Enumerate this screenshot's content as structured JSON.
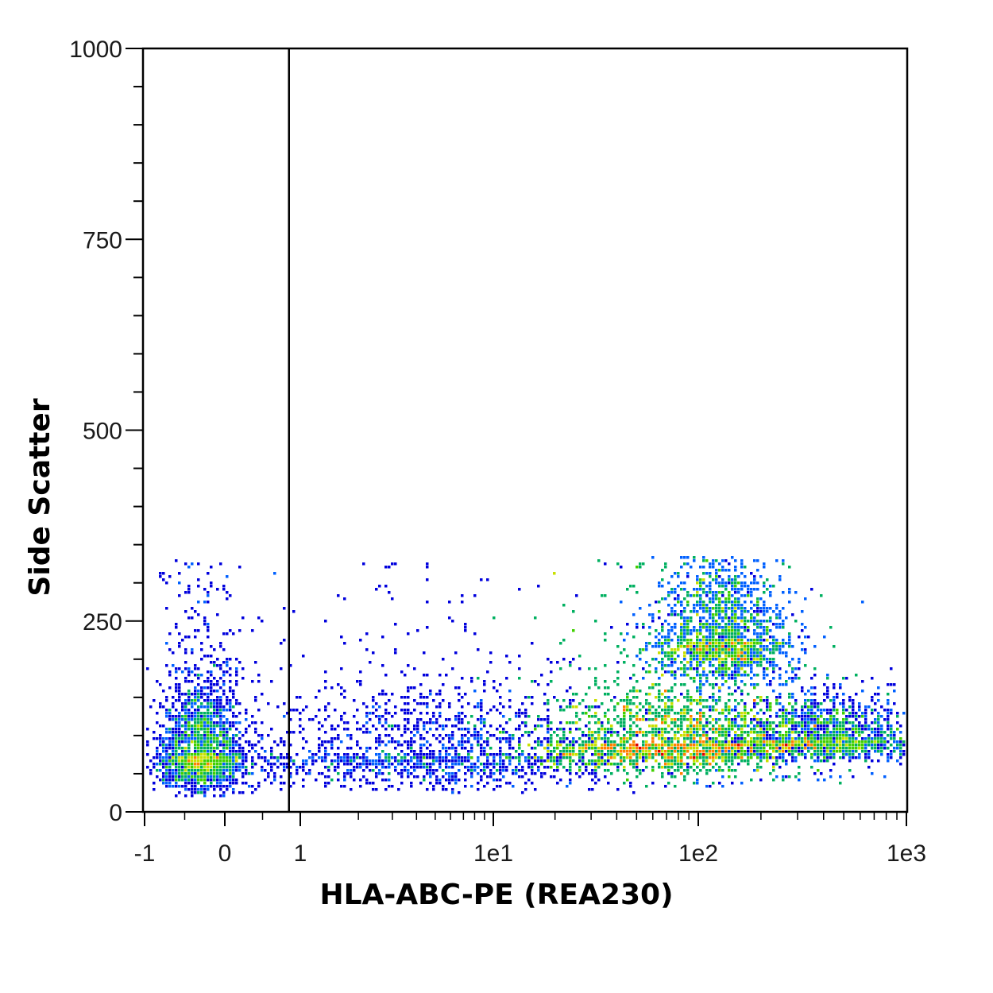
{
  "chart_data": {
    "type": "scatter",
    "subtype": "flow-cytometry-density-dot-plot",
    "xlabel": "HLA-ABC-PE (REA230)",
    "ylabel": "Side Scatter",
    "x_scale": "biexponential (linear near zero, logarithmic above 1)",
    "y_scale": "linear",
    "xlim": [
      -1,
      1000
    ],
    "ylim": [
      0,
      1000
    ],
    "x_ticks": [
      {
        "value": -1,
        "label": "-1"
      },
      {
        "value": 0,
        "label": "0"
      },
      {
        "value": 1,
        "label": "1"
      },
      {
        "value": 10,
        "label": "1e1"
      },
      {
        "value": 100,
        "label": "1e2"
      },
      {
        "value": 1000,
        "label": "1e3"
      }
    ],
    "y_ticks": [
      {
        "value": 0,
        "label": "0"
      },
      {
        "value": 250,
        "label": "250"
      },
      {
        "value": 500,
        "label": "500"
      },
      {
        "value": 750,
        "label": "750"
      },
      {
        "value": 1000,
        "label": "1000"
      }
    ],
    "gate_line": {
      "x": 0.85
    },
    "colormap": [
      "#0000dd",
      "#0060ff",
      "#00b060",
      "#40d000",
      "#c8e000",
      "#ff8000",
      "#e00000"
    ],
    "populations": [
      {
        "x_center": -0.3,
        "x_spread": 0.27,
        "y_center": 75,
        "y_spread": 35,
        "y_min": 20,
        "y_max": 330,
        "weight": 0.14
      },
      {
        "x_center": 5,
        "x_spread": 0.5,
        "y_center": 75,
        "y_spread": 35,
        "y_min": 25,
        "y_max": 330,
        "weight": 0.1
      },
      {
        "x_center": 72,
        "x_spread": 0.32,
        "y_center": 90,
        "y_spread": 30,
        "y_min": 30,
        "y_max": 330,
        "weight": 0.42
      },
      {
        "x_center": 128,
        "x_spread": 0.16,
        "y_center": 225,
        "y_spread": 40,
        "y_min": 30,
        "y_max": 335,
        "weight": 0.2
      },
      {
        "x_center": 380,
        "x_spread": 0.25,
        "y_center": 95,
        "y_spread": 20,
        "y_min": 40,
        "y_max": 190,
        "weight": 0.14
      }
    ],
    "grid": false,
    "legend": "none"
  }
}
